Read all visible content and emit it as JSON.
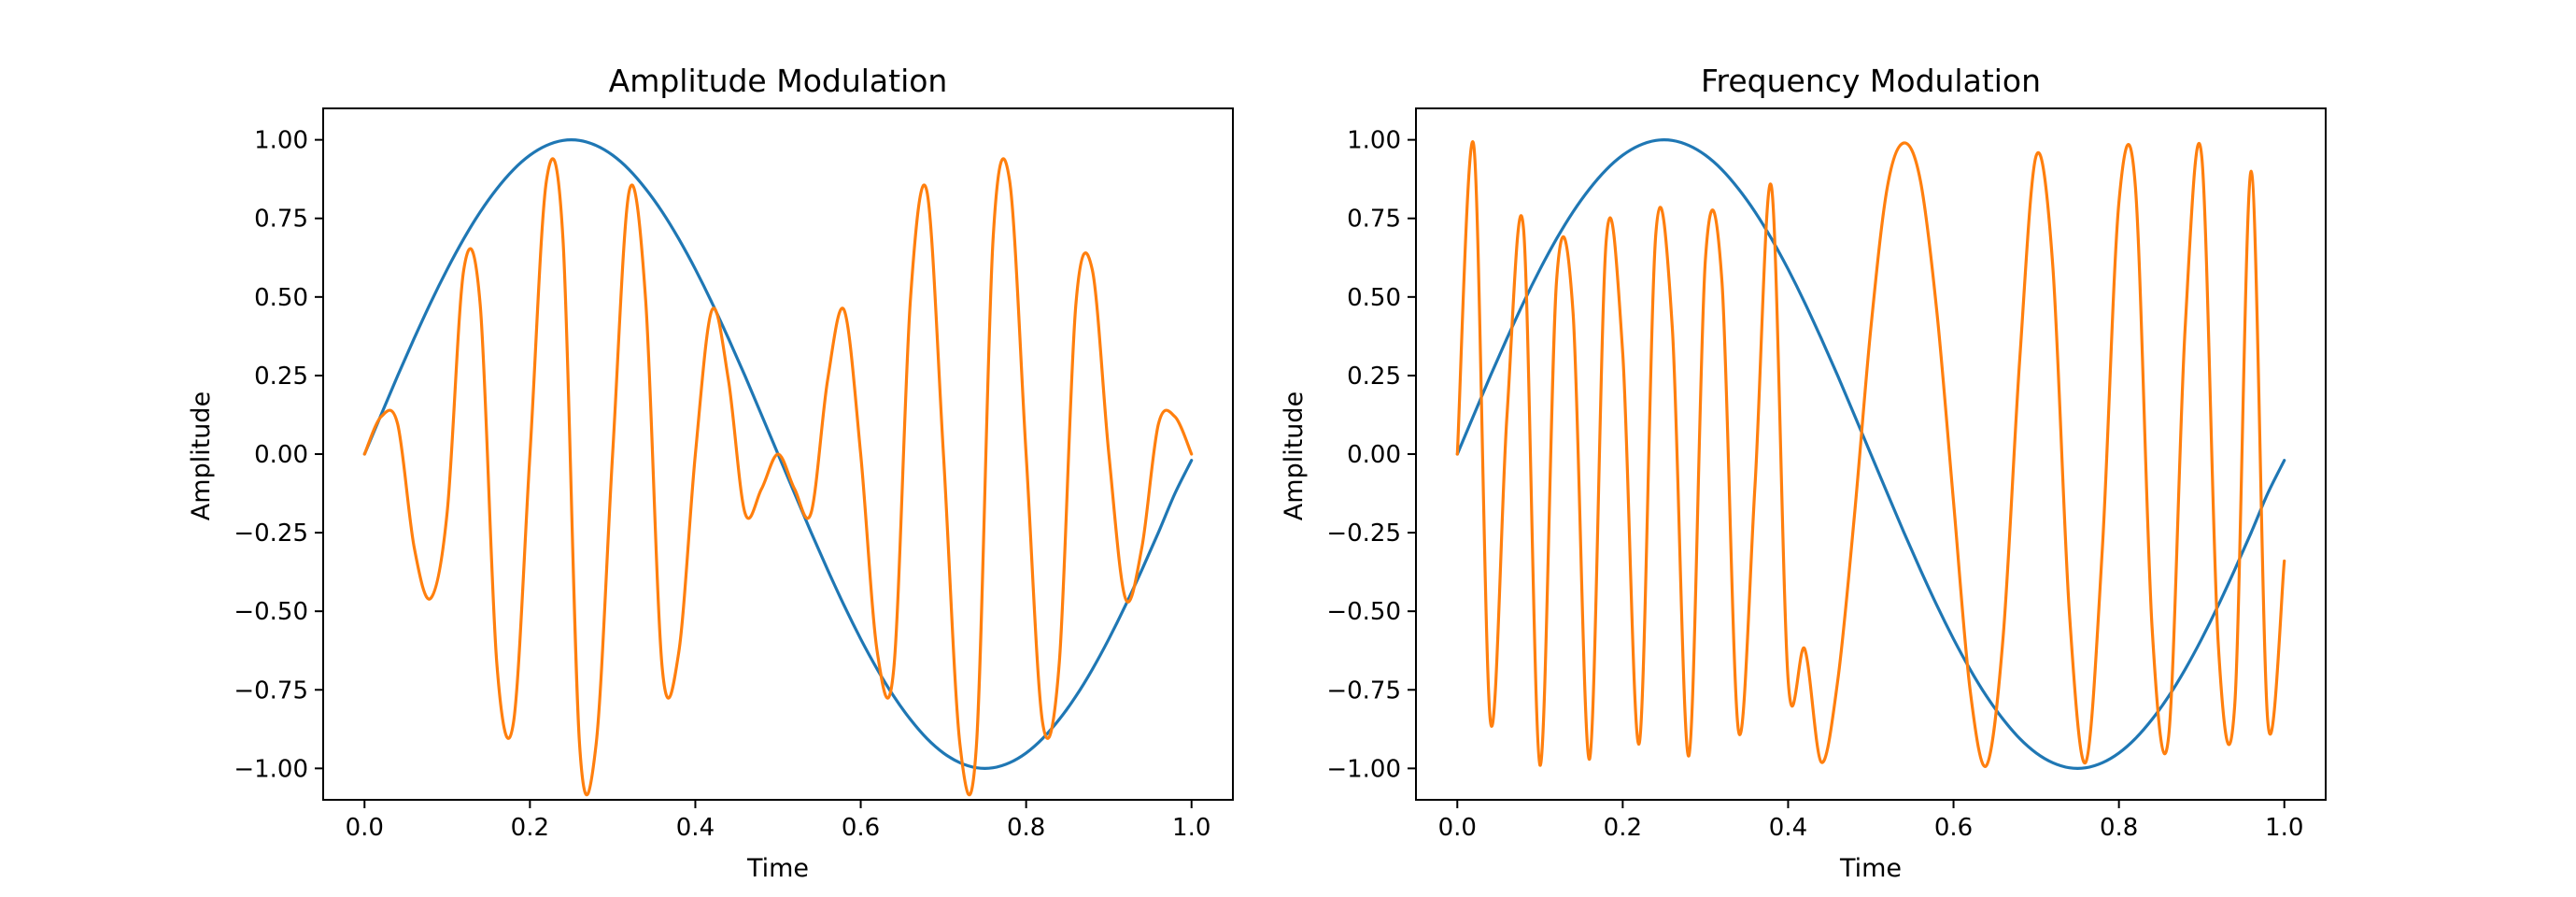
{
  "chart_data": [
    {
      "type": "line",
      "title": "Amplitude Modulation",
      "xlabel": "Time",
      "ylabel": "Amplitude",
      "xlim": [
        -0.05,
        1.05
      ],
      "ylim": [
        -1.1,
        1.1
      ],
      "xticks": [
        "0.0",
        "0.2",
        "0.4",
        "0.6",
        "0.8",
        "1.0"
      ],
      "yticks": [
        "−1.00",
        "−0.75",
        "−0.50",
        "−0.25",
        "0.00",
        "0.25",
        "0.50",
        "0.75",
        "1.00"
      ],
      "grid": false,
      "x": [
        0,
        0.02,
        0.04,
        0.06,
        0.08,
        0.1,
        0.12,
        0.14,
        0.16,
        0.18,
        0.2,
        0.22,
        0.24,
        0.26,
        0.28,
        0.3,
        0.32,
        0.34,
        0.36,
        0.38,
        0.4,
        0.42,
        0.44,
        0.46,
        0.48,
        0.5,
        0.52,
        0.54,
        0.56,
        0.58,
        0.6,
        0.62,
        0.64,
        0.66,
        0.68,
        0.7,
        0.72,
        0.74,
        0.76,
        0.78,
        0.8,
        0.82,
        0.84,
        0.86,
        0.88,
        0.9,
        0.92,
        0.94,
        0.96,
        0.98,
        1.0
      ],
      "series": [
        {
          "color": "#1f77b4",
          "values": [
            0,
            0.125,
            0.249,
            0.368,
            0.482,
            0.588,
            0.685,
            0.771,
            0.844,
            0.905,
            0.951,
            0.982,
            0.998,
            0.998,
            0.982,
            0.951,
            0.905,
            0.844,
            0.771,
            0.685,
            0.588,
            0.482,
            0.368,
            0.249,
            0.125,
            0,
            -0.125,
            -0.249,
            -0.368,
            -0.482,
            -0.588,
            -0.685,
            -0.771,
            -0.844,
            -0.905,
            -0.951,
            -0.982,
            -0.998,
            -0.998,
            -0.982,
            -0.951,
            -0.905,
            -0.844,
            -0.771,
            -0.685,
            -0.588,
            -0.482,
            -0.368,
            -0.249,
            -0.125,
            -0.02
          ]
        },
        {
          "color": "#ff7f0e",
          "values": [
            0,
            0.119,
            0.096,
            -0.296,
            -0.459,
            -0.184,
            0.586,
            0.473,
            -0.665,
            -0.855,
            0,
            0.871,
            0.682,
            -0.923,
            -0.924,
            0,
            0.836,
            0.489,
            -0.68,
            -0.631,
            0,
            0.458,
            0.236,
            -0.187,
            -0.111,
            0,
            -0.111,
            -0.187,
            0.236,
            0.458,
            0,
            -0.631,
            -0.68,
            0.489,
            0.836,
            0,
            -0.924,
            -0.923,
            0.682,
            0.871,
            0,
            -0.855,
            -0.665,
            0.473,
            0.586,
            0,
            -0.459,
            -0.296,
            0.096,
            0.119,
            0
          ]
        }
      ]
    },
    {
      "type": "line",
      "title": "Frequency Modulation",
      "xlabel": "Time",
      "ylabel": "Amplitude",
      "xlim": [
        -0.05,
        1.05
      ],
      "ylim": [
        -1.1,
        1.1
      ],
      "xticks": [
        "0.0",
        "0.2",
        "0.4",
        "0.6",
        "0.8",
        "1.0"
      ],
      "yticks": [
        "−1.00",
        "−0.75",
        "−0.50",
        "−0.25",
        "0.00",
        "0.25",
        "0.50",
        "0.75",
        "1.00"
      ],
      "grid": false,
      "x": [
        0,
        0.02,
        0.04,
        0.06,
        0.08,
        0.1,
        0.12,
        0.14,
        0.16,
        0.18,
        0.2,
        0.22,
        0.24,
        0.26,
        0.28,
        0.3,
        0.32,
        0.34,
        0.36,
        0.38,
        0.4,
        0.42,
        0.44,
        0.46,
        0.48,
        0.5,
        0.52,
        0.54,
        0.56,
        0.58,
        0.6,
        0.62,
        0.64,
        0.66,
        0.68,
        0.7,
        0.72,
        0.74,
        0.76,
        0.78,
        0.8,
        0.82,
        0.84,
        0.86,
        0.88,
        0.9,
        0.92,
        0.94,
        0.96,
        0.98,
        1.0
      ],
      "series": [
        {
          "color": "#1f77b4",
          "values": [
            0,
            0.125,
            0.249,
            0.368,
            0.482,
            0.588,
            0.685,
            0.771,
            0.844,
            0.905,
            0.951,
            0.982,
            0.998,
            0.998,
            0.982,
            0.951,
            0.905,
            0.844,
            0.771,
            0.685,
            0.588,
            0.482,
            0.368,
            0.249,
            0.125,
            0,
            -0.125,
            -0.249,
            -0.368,
            -0.482,
            -0.588,
            -0.685,
            -0.771,
            -0.844,
            -0.905,
            -0.951,
            -0.982,
            -0.998,
            -0.998,
            -0.982,
            -0.951,
            -0.905,
            -0.844,
            -0.771,
            -0.685,
            -0.588,
            -0.482,
            -0.368,
            -0.249,
            -0.125,
            -0.02
          ]
        },
        {
          "color": "#ff7f0e",
          "values": [
            0,
            0.98,
            -0.85,
            0.12,
            0.72,
            -0.99,
            0.55,
            0.45,
            -0.97,
            0.68,
            0.32,
            -0.92,
            0.7,
            0.4,
            -0.96,
            0.62,
            0.55,
            -0.88,
            -0.1,
            0.85,
            -0.72,
            -0.62,
            -0.98,
            -0.72,
            -0.2,
            0.4,
            0.85,
            0.99,
            0.87,
            0.45,
            -0.15,
            -0.75,
            -0.99,
            -0.58,
            0.3,
            0.95,
            0.6,
            -0.5,
            -0.98,
            -0.3,
            0.8,
            0.85,
            -0.55,
            -0.9,
            0.4,
            0.95,
            -0.6,
            -0.8,
            0.9,
            -0.85,
            -0.34
          ]
        }
      ]
    }
  ]
}
